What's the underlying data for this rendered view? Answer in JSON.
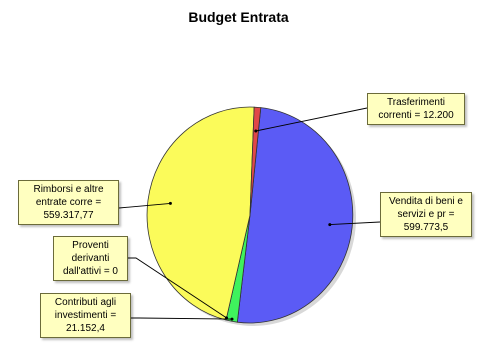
{
  "chart_data": {
    "type": "pie",
    "title": "Budget Entrata",
    "slices": [
      {
        "name": "Vendita di beni e servizi e pr",
        "value": 599773.5,
        "color": "#5b5bf5",
        "label_lines": [
          "Vendita di beni e",
          "servizi e pr =",
          "599.773,5"
        ]
      },
      {
        "name": "Contributi agli investimenti",
        "value": 21152.4,
        "color": "#3ff25d",
        "label_lines": [
          "Contributi agli",
          "investimenti =",
          "21.152,4"
        ]
      },
      {
        "name": "Proventi derivanti dall'attivi",
        "value": 0,
        "color": "#b0b0b0",
        "label_lines": [
          "Proventi",
          "derivanti",
          "dall'attivi = 0"
        ]
      },
      {
        "name": "Rimborsi e altre entrate corre",
        "value": 559317.77,
        "color": "#fbfb5a",
        "label_lines": [
          "Rimborsi e altre",
          "entrate corre =",
          "559.317,77"
        ]
      },
      {
        "name": "Trasferimenti correnti",
        "value": 12200,
        "color": "#e04848",
        "label_lines": [
          "Trasferimenti",
          "correnti = 12.200"
        ]
      }
    ]
  }
}
